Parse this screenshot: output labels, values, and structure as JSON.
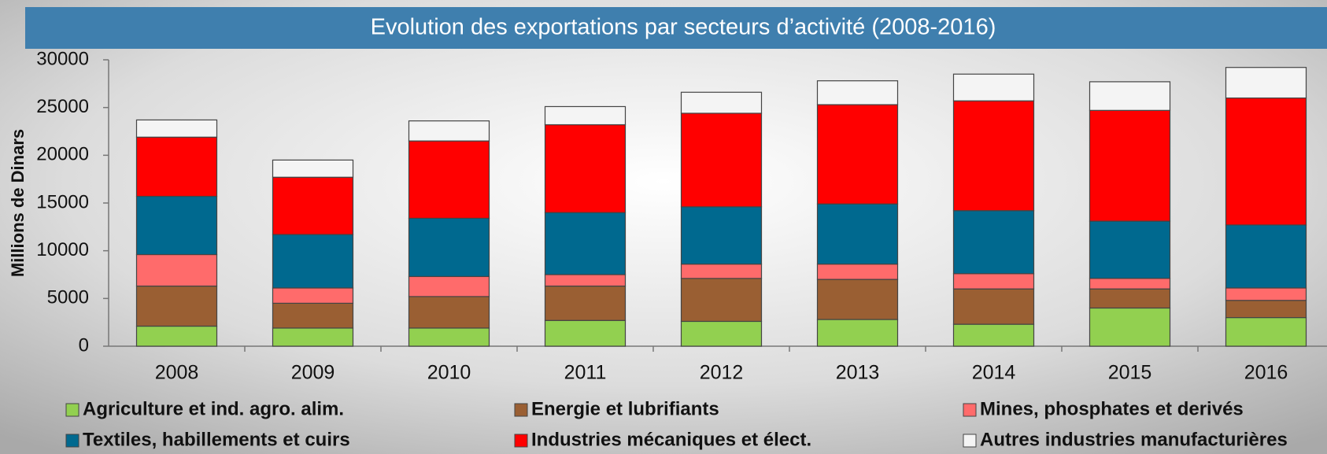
{
  "chart_data": {
    "type": "stacked_bar",
    "title": "Evolution des exportations par secteurs d’activité (2008-2016)",
    "y_label": "Millions de Dinars",
    "categories": [
      "2008",
      "2009",
      "2010",
      "2011",
      "2012",
      "2013",
      "2014",
      "2015",
      "2016"
    ],
    "series": [
      {
        "name": "Agriculture et ind. agro. alim.",
        "color": "#92d050",
        "values": [
          2100,
          1900,
          1900,
          2700,
          2600,
          2800,
          2300,
          4000,
          3000
        ]
      },
      {
        "name": "Energie et lubrifiants",
        "color": "#9a5f33",
        "values": [
          4200,
          2600,
          3300,
          3600,
          4500,
          4200,
          3700,
          2000,
          1800
        ]
      },
      {
        "name": "Mines, phosphates et derivés",
        "color": "#ff6b6b",
        "values": [
          3300,
          1600,
          2100,
          1200,
          1500,
          1600,
          1600,
          1100,
          1300
        ]
      },
      {
        "name": "Textiles, habillements et cuirs",
        "color": "#00698f",
        "values": [
          6100,
          5600,
          6100,
          6500,
          6000,
          6300,
          6600,
          6000,
          6600
        ]
      },
      {
        "name": "Industries mécaniques et élect.",
        "color": "#ff0000",
        "values": [
          6200,
          6000,
          8100,
          9200,
          9800,
          10400,
          11500,
          11600,
          13300
        ]
      },
      {
        "name": "Autres industries manufacturières",
        "color": "#f4f4f4",
        "values": [
          1800,
          1800,
          2100,
          1900,
          2200,
          2500,
          2800,
          3000,
          3200
        ]
      }
    ],
    "ylim": [
      0,
      30000
    ],
    "yticks": [
      0,
      5000,
      10000,
      15000,
      20000,
      25000,
      30000
    ],
    "grid": false
  }
}
